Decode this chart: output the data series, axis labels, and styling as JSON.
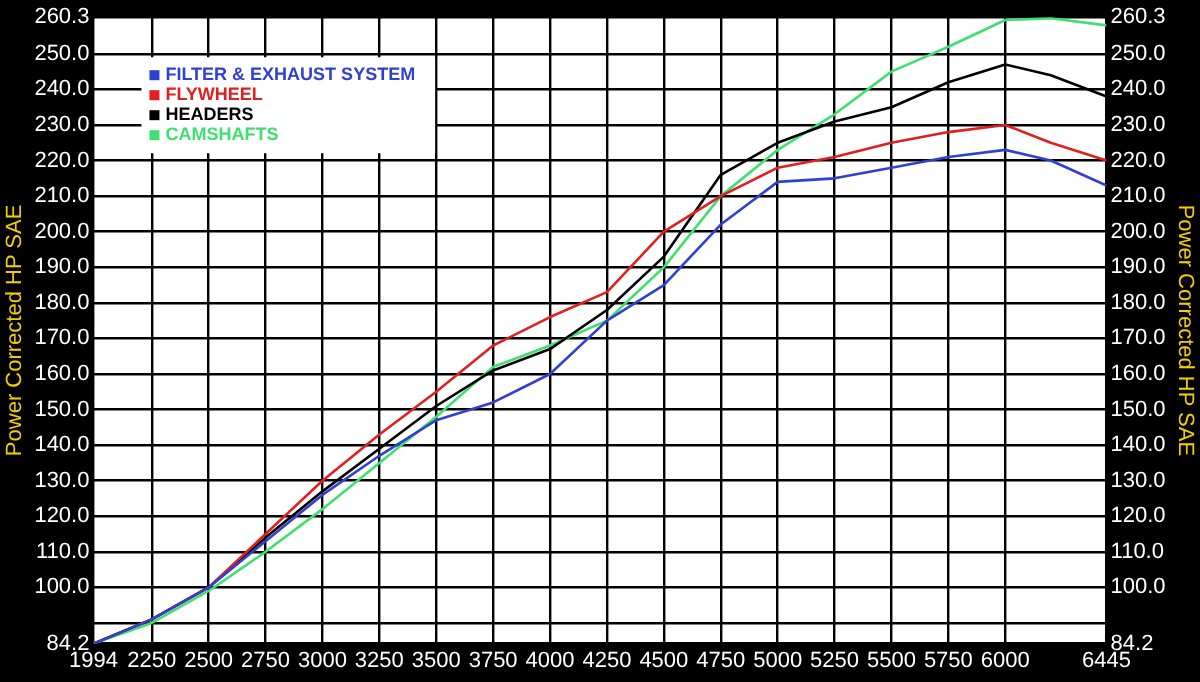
{
  "chart_data": {
    "type": "line",
    "ylabel": "Power Corrected HP SAE",
    "y2label": "Power Corrected HP SAE",
    "x": [
      1994,
      2250,
      2500,
      2750,
      3000,
      3250,
      3500,
      3750,
      4000,
      4250,
      4500,
      4750,
      5000,
      5250,
      5500,
      5750,
      6000,
      6200,
      6445
    ],
    "xlim": [
      1994,
      6445
    ],
    "xticks": [
      1994,
      2250,
      2500,
      2750,
      3000,
      3250,
      3500,
      3750,
      4000,
      4250,
      4500,
      4750,
      5000,
      5250,
      5500,
      5750,
      6000,
      6445
    ],
    "ylim": [
      84.2,
      260.3
    ],
    "yticks": [
      84.2,
      {
        "value": 90,
        "label": null
      },
      {
        "value": 100,
        "label": "100.0"
      },
      {
        "value": 110,
        "label": "110.0"
      },
      {
        "value": 120,
        "label": "120.0"
      },
      {
        "value": 130,
        "label": "130.0"
      },
      {
        "value": 140,
        "label": "140.0"
      },
      {
        "value": 150,
        "label": "150.0"
      },
      {
        "value": 160,
        "label": "160.0"
      },
      {
        "value": 170,
        "label": "170.0"
      },
      {
        "value": 180,
        "label": "180.0"
      },
      {
        "value": 190,
        "label": "190.0"
      },
      {
        "value": 200,
        "label": "200.0"
      },
      {
        "value": 210,
        "label": "210.0"
      },
      {
        "value": 220,
        "label": "220.0"
      },
      {
        "value": 230,
        "label": "230.0"
      },
      {
        "value": 240,
        "label": "240.0"
      },
      {
        "value": 250,
        "label": "250.0"
      },
      260.3
    ],
    "y2lim": [
      84.2,
      260.3
    ],
    "y2ticks": [
      84.2,
      {
        "value": 90,
        "label": null
      },
      {
        "value": 100,
        "label": "100.0"
      },
      {
        "value": 110,
        "label": "110.0"
      },
      {
        "value": 120,
        "label": "120.0"
      },
      {
        "value": 130,
        "label": "130.0"
      },
      {
        "value": 140,
        "label": "140.0"
      },
      {
        "value": 150,
        "label": "150.0"
      },
      {
        "value": 160,
        "label": "160.0"
      },
      {
        "value": 170,
        "label": "170.0"
      },
      {
        "value": 180,
        "label": "180.0"
      },
      {
        "value": 190,
        "label": "190.0"
      },
      {
        "value": 200,
        "label": "200.0"
      },
      {
        "value": 210,
        "label": "210.0"
      },
      {
        "value": 220,
        "label": "220.0"
      },
      {
        "value": 230,
        "label": "230.0"
      },
      {
        "value": 240,
        "label": "240.0"
      },
      {
        "value": 250,
        "label": "250.0"
      },
      260.3
    ],
    "grid": true,
    "legend": "top left",
    "marker": "none",
    "line_style": "solid",
    "series": [
      {
        "name": "FILTER & EXHAUST SYSTEM",
        "color": "#3040d0",
        "values": [
          84.2,
          91,
          100,
          113,
          126,
          137,
          147,
          152,
          160,
          175,
          185,
          202,
          214,
          215,
          218,
          221,
          223,
          220,
          213
        ]
      },
      {
        "name": "FLYWHEEL",
        "color": "#e02020",
        "values": [
          84.2,
          91,
          100,
          115,
          130,
          143,
          155,
          168,
          176,
          183,
          200,
          210,
          218,
          221,
          225,
          228,
          230,
          225,
          220
        ]
      },
      {
        "name": "HEADERS",
        "color": "#000000",
        "values": [
          84.2,
          91,
          100,
          114,
          127,
          139,
          151,
          161,
          167,
          178,
          193,
          216,
          225,
          231,
          235,
          242,
          247,
          244,
          238
        ]
      },
      {
        "name": "CAMSHAFTS",
        "color": "#40e070",
        "values": [
          84.2,
          90,
          99,
          110,
          122,
          135,
          148,
          162,
          168,
          175,
          190,
          210,
          223,
          233,
          245,
          252,
          259.5,
          260,
          258
        ]
      }
    ]
  }
}
